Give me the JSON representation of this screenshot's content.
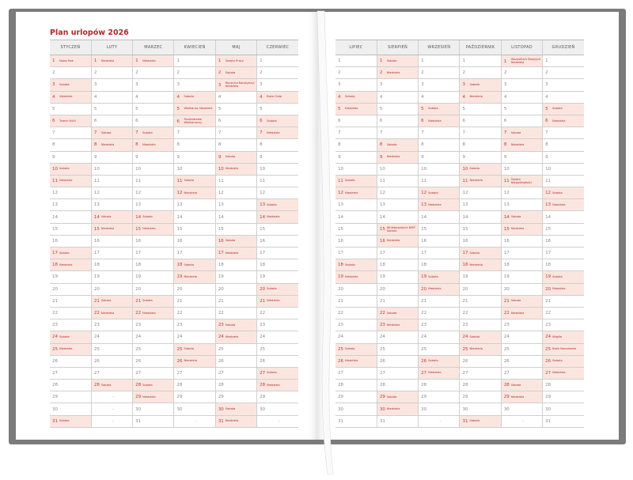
{
  "title": "Plan urlopów 2026",
  "colors": {
    "accent": "#b0282b",
    "highlight": "#fbe6df",
    "cover": "#7b7b7b"
  },
  "empty_marker": "–",
  "months": [
    {
      "name": "STYCZEŃ",
      "length": 31,
      "notes": {
        "1": "Nowy Rok",
        "3": "Sobota",
        "4": "Niedziela",
        "6": "Trzech Króli",
        "10": "Sobota",
        "11": "Niedziela",
        "17": "Sobota",
        "18": "Niedziela",
        "24": "Sobota",
        "25": "Niedziela",
        "31": "Sobota"
      }
    },
    {
      "name": "LUTY",
      "length": 28,
      "notes": {
        "1": "Niedziela",
        "7": "Sobota",
        "8": "Niedziela",
        "14": "Sobota",
        "15": "Niedziela",
        "21": "Sobota",
        "22": "Niedziela",
        "28": "Sobota"
      }
    },
    {
      "name": "MARZEC",
      "length": 31,
      "notes": {
        "1": "Niedziela",
        "7": "Sobota",
        "8": "Niedziela",
        "14": "Sobota",
        "15": "Niedziela",
        "21": "Sobota",
        "22": "Niedziela",
        "28": "Sobota",
        "29": "Niedziela"
      }
    },
    {
      "name": "KWIECIEŃ",
      "length": 30,
      "notes": {
        "4": "Sobota",
        "5": "Wielkanoc Niedziela",
        "6": "Poniedziałek Wielkanocny",
        "11": "Sobota",
        "12": "Niedziela",
        "18": "Sobota",
        "19": "Niedziela",
        "25": "Sobota",
        "26": "Niedziela"
      }
    },
    {
      "name": "MAJ",
      "length": 31,
      "notes": {
        "1": "Święto Pracy",
        "2": "Sobota",
        "3": "Rocznica Konstytucji Niedziela",
        "9": "Sobota",
        "10": "Niedziela",
        "16": "Sobota",
        "17": "Niedziela",
        "23": "Sobota",
        "24": "Niedziela",
        "30": "Sobota",
        "31": "Niedziela"
      }
    },
    {
      "name": "CZERWIEC",
      "length": 30,
      "notes": {
        "4": "Boże Ciało",
        "6": "Sobota",
        "7": "Niedziela",
        "13": "Sobota",
        "14": "Niedziela",
        "20": "Sobota",
        "21": "Niedziela",
        "27": "Sobota",
        "28": "Niedziela"
      }
    },
    {
      "name": "LIPIEC",
      "length": 31,
      "notes": {
        "4": "Sobota",
        "5": "Niedziela",
        "11": "Sobota",
        "12": "Niedziela",
        "18": "Sobota",
        "19": "Niedziela",
        "25": "Sobota",
        "26": "Niedziela"
      }
    },
    {
      "name": "SIERPIEŃ",
      "length": 31,
      "notes": {
        "1": "Sobota",
        "2": "Niedziela",
        "8": "Sobota",
        "9": "Niedziela",
        "15": "Wniebowzięcie NMP Sobota",
        "16": "Niedziela",
        "22": "Sobota",
        "23": "Niedziela",
        "29": "Sobota",
        "30": "Niedziela"
      }
    },
    {
      "name": "WRZESIEŃ",
      "length": 30,
      "notes": {
        "5": "Sobota",
        "6": "Niedziela",
        "12": "Sobota",
        "13": "Niedziela",
        "19": "Sobota",
        "20": "Niedziela",
        "26": "Sobota",
        "27": "Niedziela"
      }
    },
    {
      "name": "PAŹDZIERNIK",
      "length": 31,
      "notes": {
        "3": "Sobota",
        "4": "Niedziela",
        "10": "Sobota",
        "11": "Niedziela",
        "17": "Sobota",
        "18": "Niedziela",
        "24": "Sobota",
        "25": "Niedziela",
        "31": "Sobota"
      }
    },
    {
      "name": "LISTOPAD",
      "length": 30,
      "notes": {
        "1": "Wszystkich Świętych Niedziela",
        "7": "Sobota",
        "8": "Niedziela",
        "11": "Święto Niepodległości",
        "14": "Sobota",
        "15": "Niedziela",
        "21": "Sobota",
        "22": "Niedziela",
        "28": "Sobota",
        "29": "Niedziela"
      }
    },
    {
      "name": "GRUDZIEŃ",
      "length": 31,
      "notes": {
        "5": "Sobota",
        "6": "Niedziela",
        "12": "Sobota",
        "13": "Niedziela",
        "19": "Sobota",
        "20": "Niedziela",
        "24": "Wigilia",
        "25": "Boże Narodzenie",
        "26": "Sobota",
        "27": "Niedziela"
      }
    }
  ]
}
